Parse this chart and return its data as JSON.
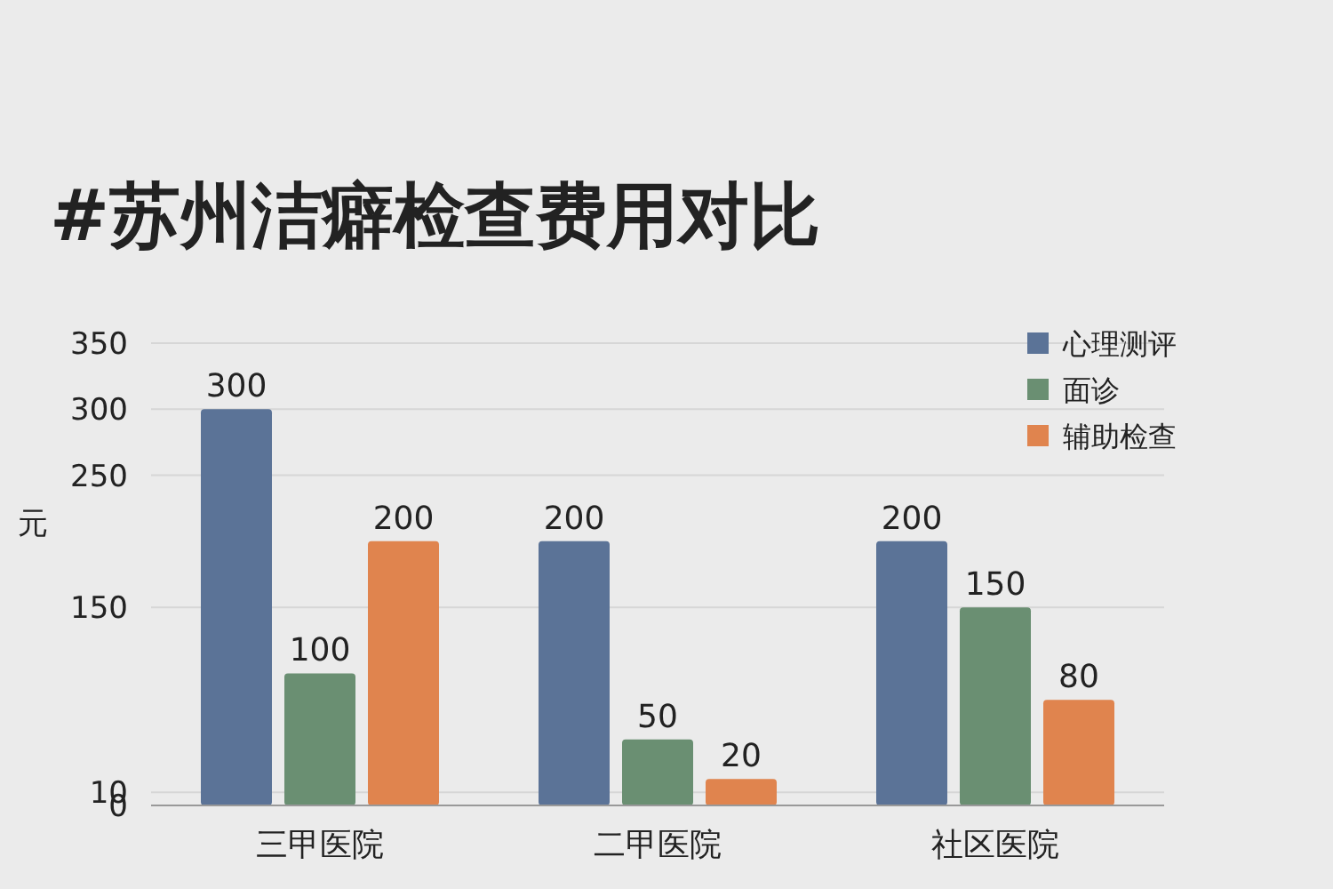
{
  "chart_data": {
    "type": "bar",
    "title": "#苏州洁癖检查费用对比",
    "ylabel": "元",
    "categories": [
      "三甲医院",
      "二甲医院",
      "社区医院"
    ],
    "series": [
      {
        "name": "心理测评",
        "color": "#5b7397",
        "values": [
          300,
          200,
          200
        ]
      },
      {
        "name": "面诊",
        "color": "#6a8f72",
        "values": [
          100,
          50,
          150
        ]
      },
      {
        "name": "辅助检查",
        "color": "#e0844e",
        "values": [
          200,
          20,
          80
        ]
      }
    ],
    "ylim": [
      0,
      350
    ],
    "yticks": [
      0,
      10,
      150,
      250,
      300,
      350
    ],
    "grid": "y",
    "legend": "top right",
    "data_labels": true
  }
}
